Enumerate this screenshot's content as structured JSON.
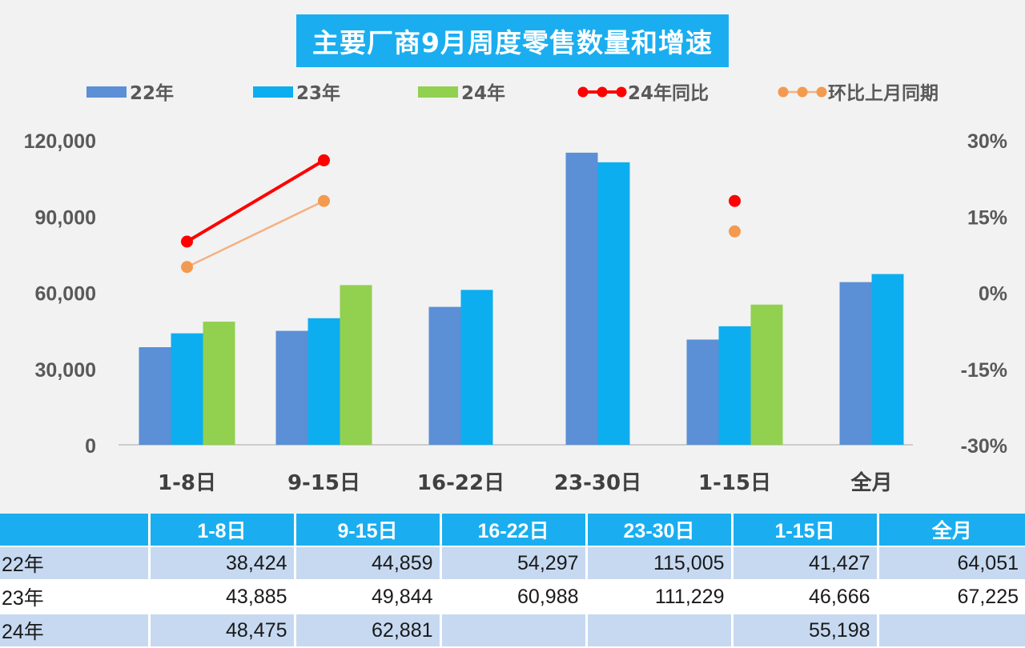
{
  "title": "主要厂商9月周度零售数量和增速",
  "colors": {
    "s22": "#5b8fd6",
    "s23": "#0daeef",
    "s24": "#92d050",
    "yoy": "#ff0000",
    "mom": "#f4b183",
    "mom_point": "#f39a4f",
    "title_bg": "#1aaef0"
  },
  "chart_data": {
    "type": "bar",
    "title": "主要厂商9月周度零售数量和增速",
    "categories": [
      "1-8日",
      "9-15日",
      "16-22日",
      "23-30日",
      "1-15日",
      "全月"
    ],
    "series": [
      {
        "name": "22年",
        "type": "bar",
        "axis": "left",
        "values": [
          38424,
          44859,
          54297,
          115005,
          41427,
          64051
        ]
      },
      {
        "name": "23年",
        "type": "bar",
        "axis": "left",
        "values": [
          43885,
          49844,
          60988,
          111229,
          46666,
          67225
        ]
      },
      {
        "name": "24年",
        "type": "bar",
        "axis": "left",
        "values": [
          48475,
          62881,
          null,
          null,
          55198,
          null
        ]
      },
      {
        "name": "24年同比",
        "type": "line",
        "axis": "right",
        "values": [
          0.1,
          0.26,
          null,
          null,
          0.18,
          null
        ]
      },
      {
        "name": "环比上月同期",
        "type": "line",
        "axis": "right",
        "values": [
          0.05,
          0.18,
          null,
          null,
          0.12,
          null
        ]
      }
    ],
    "y_left": {
      "min": 0,
      "max": 120000,
      "ticks": [
        "0",
        "30,000",
        "60,000",
        "90,000",
        "120,000"
      ],
      "tick_values": [
        0,
        30000,
        60000,
        90000,
        120000
      ]
    },
    "y_right": {
      "min": -0.3,
      "max": 0.3,
      "ticks": [
        "-30%",
        "-15%",
        "0%",
        "15%",
        "30%"
      ],
      "tick_values": [
        -0.3,
        -0.15,
        0,
        0.15,
        0.3
      ]
    },
    "legend": "top",
    "grid": false
  },
  "table": {
    "headers": [
      "",
      "1-8日",
      "9-15日",
      "16-22日",
      "23-30日",
      "1-15日",
      "全月"
    ],
    "rows": [
      {
        "label": "22年",
        "cells": [
          "38,424",
          "44,859",
          "54,297",
          "115,005",
          "41,427",
          "64,051"
        ]
      },
      {
        "label": "23年",
        "cells": [
          "43,885",
          "49,844",
          "60,988",
          "111,229",
          "46,666",
          "67,225"
        ]
      },
      {
        "label": "24年",
        "cells": [
          "48,475",
          "62,881",
          "",
          "",
          "55,198",
          ""
        ]
      }
    ]
  }
}
